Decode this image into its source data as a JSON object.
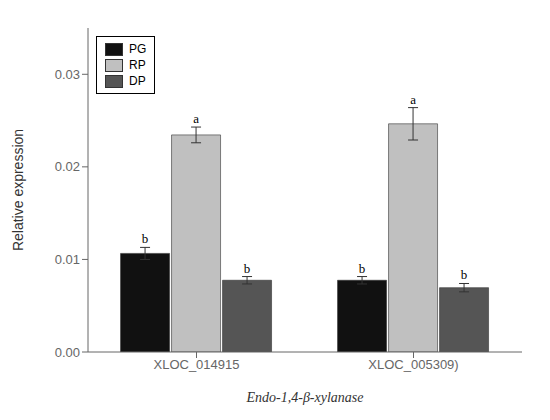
{
  "chart_data": {
    "type": "bar",
    "xlabel": "Endo-1,4-β-xylanase",
    "ylabel": "Relative expression",
    "categories": [
      "XLOC_014915",
      "XLOC_005309)"
    ],
    "series": [
      {
        "name": "PG",
        "color": "#111111",
        "values": [
          0.01065,
          0.00775
        ],
        "errors": [
          0.00065,
          0.0004
        ],
        "annotations": [
          "b",
          "b"
        ]
      },
      {
        "name": "RP",
        "color": "#c0c0c0",
        "values": [
          0.02345,
          0.02465
        ],
        "errors": [
          0.00085,
          0.00175
        ],
        "annotations": [
          "a",
          "a"
        ]
      },
      {
        "name": "DP",
        "color": "#555555",
        "values": [
          0.00775,
          0.00695
        ],
        "errors": [
          0.0004,
          0.00045
        ],
        "annotations": [
          "b",
          "b"
        ]
      }
    ],
    "ylim": [
      0,
      0.035
    ],
    "yticks": [
      {
        "value": 0,
        "label": "0.00"
      },
      0.01,
      0.02,
      0.03
    ],
    "legend": "upper left",
    "grid": false
  }
}
